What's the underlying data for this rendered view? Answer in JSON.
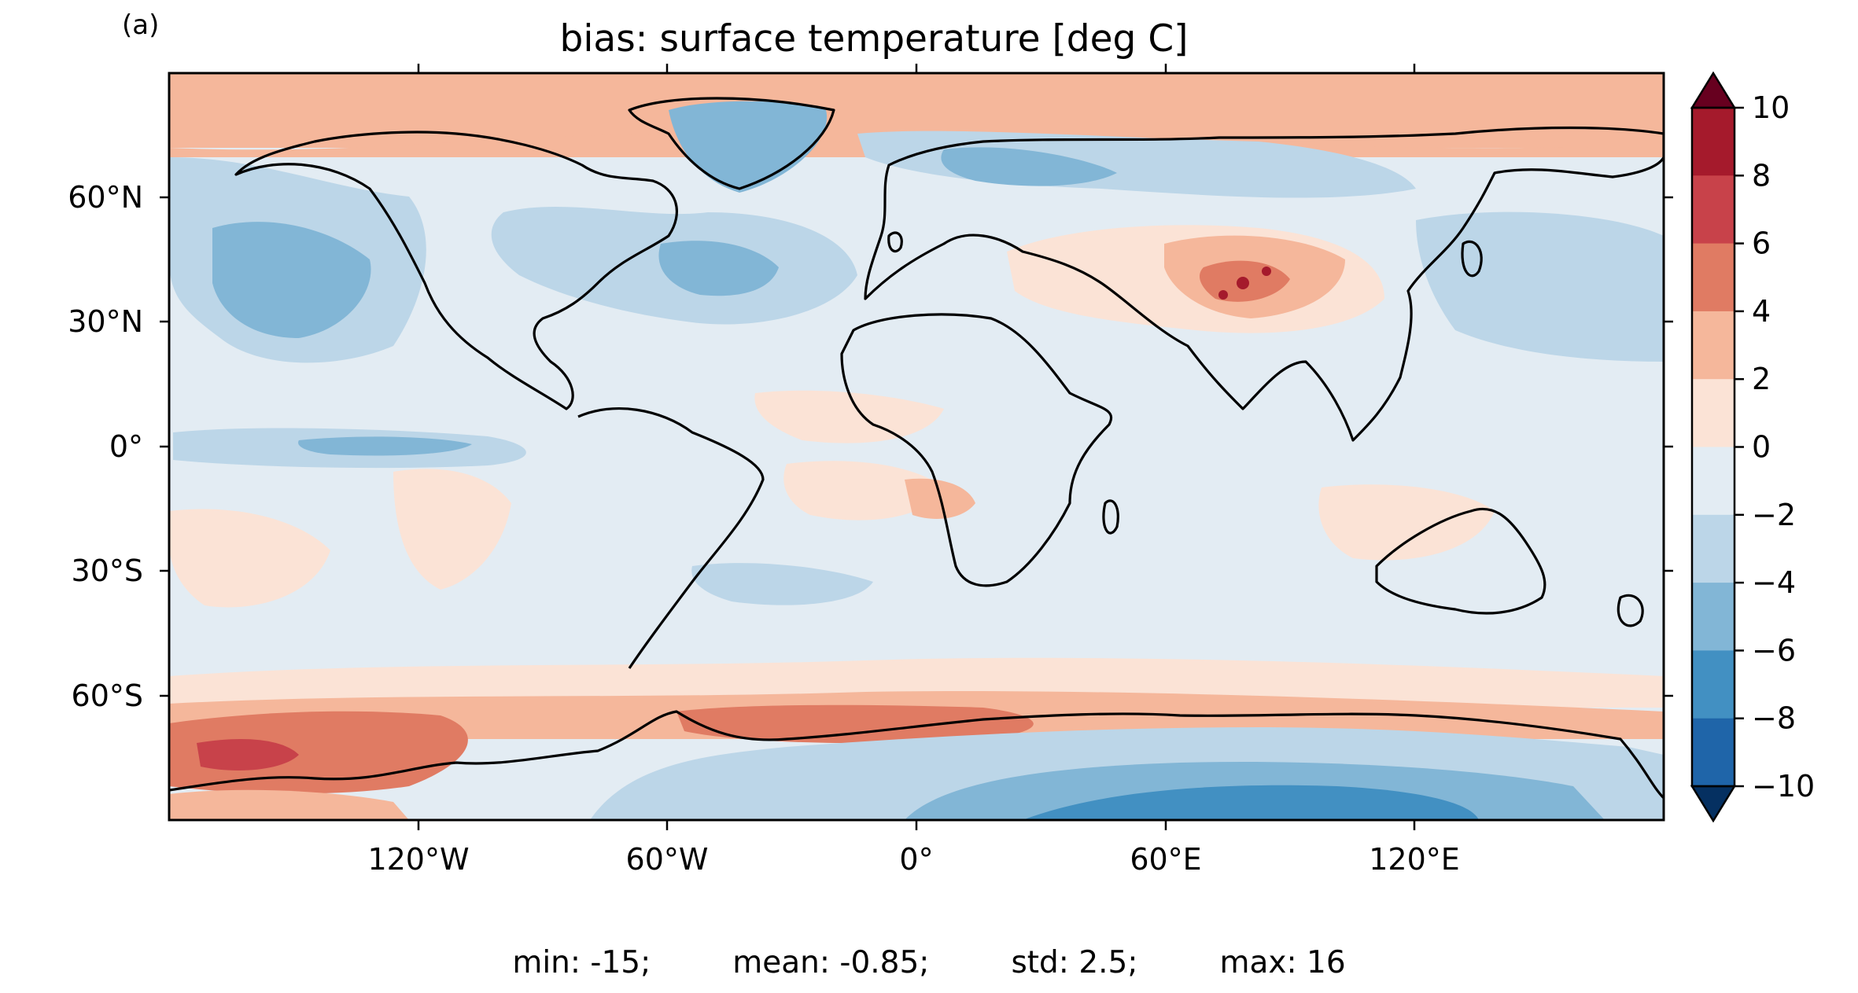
{
  "panel_label": "(a)",
  "title": "bias: surface temperature [deg C]",
  "stats": {
    "min": "min: -15;",
    "mean": "mean: -0.85;",
    "std": "std: 2.5;",
    "max": "max: 16"
  },
  "map": {
    "projection": "PlateCarree",
    "lon_ticks": [
      "120°W",
      "60°W",
      "0°",
      "60°E",
      "120°E"
    ],
    "lat_ticks": [
      "60°N",
      "30°N",
      "0°",
      "30°S",
      "60°S"
    ]
  },
  "colorbar": {
    "levels": [
      -10,
      -8,
      -6,
      -4,
      -2,
      0,
      2,
      4,
      6,
      8,
      10
    ],
    "tick_labels": [
      "10",
      "8",
      "6",
      "4",
      "2",
      "0",
      "−2",
      "−4",
      "−6",
      "−8",
      "−10"
    ],
    "colors_high_to_low": [
      "#a51a2c",
      "#c8424a",
      "#e07b63",
      "#f5b79b",
      "#fbe3d6",
      "#e3ecf3",
      "#bcd6e8",
      "#82b6d6",
      "#4290c2",
      "#1f65a9"
    ],
    "extend_high": "#67001f",
    "extend_low": "#053061"
  }
}
